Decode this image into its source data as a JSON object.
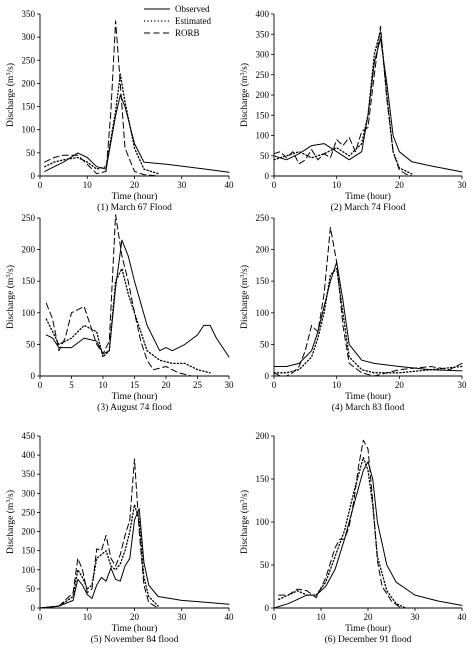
{
  "legend": {
    "entries": [
      {
        "name": "Observed",
        "style": "solid"
      },
      {
        "name": "Estimated",
        "style": "dotted"
      },
      {
        "name": "RORB",
        "style": "dashed"
      }
    ]
  },
  "chart_data": [
    {
      "type": "line",
      "caption": "(1) March 67 Flood",
      "xlabel": "Time (hour)",
      "ylabel": "Discharge (m3/s)",
      "xlim": [
        0,
        40
      ],
      "ylim": [
        0,
        350
      ],
      "xticks": [
        0,
        10,
        20,
        30,
        40
      ],
      "yticks": [
        0,
        50,
        100,
        150,
        200,
        250,
        300,
        350
      ],
      "legend_position": "top-right",
      "series": [
        {
          "name": "Observed",
          "style": "solid",
          "x": [
            1,
            3,
            5,
            8,
            10,
            12,
            14,
            16,
            17,
            18,
            20,
            22,
            27,
            31,
            35,
            40
          ],
          "y": [
            10,
            20,
            30,
            50,
            40,
            20,
            15,
            130,
            175,
            150,
            70,
            30,
            25,
            20,
            15,
            8
          ]
        },
        {
          "name": "Estimated",
          "style": "dotted",
          "x": [
            1,
            3,
            5,
            8,
            10,
            12,
            14,
            16,
            17,
            18,
            20,
            22,
            25
          ],
          "y": [
            20,
            30,
            35,
            40,
            30,
            15,
            20,
            140,
            220,
            160,
            60,
            15,
            5
          ]
        },
        {
          "name": "RORB",
          "style": "dashed",
          "x": [
            1,
            3,
            5,
            8,
            10,
            12,
            14,
            15,
            16,
            17,
            18,
            20,
            22,
            25
          ],
          "y": [
            30,
            40,
            45,
            45,
            25,
            5,
            10,
            140,
            335,
            200,
            60,
            10,
            3,
            0
          ]
        }
      ]
    },
    {
      "type": "line",
      "caption": "(2) March 74 Flood",
      "xlabel": "Time (hour)",
      "ylabel": "Discharge (m3/s)",
      "xlim": [
        0,
        30
      ],
      "ylim": [
        0,
        400
      ],
      "xticks": [
        0,
        10,
        20,
        30
      ],
      "yticks": [
        0,
        50,
        100,
        150,
        200,
        250,
        300,
        350,
        400
      ],
      "series": [
        {
          "name": "Observed",
          "style": "solid",
          "x": [
            0,
            2,
            4,
            6,
            8,
            10,
            12,
            14,
            15,
            16,
            17,
            18,
            19,
            20,
            22,
            25,
            30
          ],
          "y": [
            50,
            40,
            55,
            75,
            80,
            60,
            40,
            60,
            150,
            280,
            340,
            230,
            100,
            60,
            35,
            25,
            10
          ]
        },
        {
          "name": "Estimated",
          "style": "dotted",
          "x": [
            0,
            2,
            4,
            6,
            8,
            10,
            12,
            14,
            15,
            16,
            17,
            18,
            19,
            20,
            22
          ],
          "y": [
            40,
            50,
            60,
            45,
            55,
            70,
            50,
            80,
            150,
            300,
            360,
            200,
            60,
            20,
            5
          ]
        },
        {
          "name": "RORB",
          "style": "dashed",
          "x": [
            0,
            1,
            2,
            3,
            4,
            5,
            6,
            7,
            8,
            9,
            10,
            11,
            12,
            13,
            14,
            15,
            16,
            17,
            18,
            19,
            20,
            21,
            22
          ],
          "y": [
            55,
            60,
            45,
            60,
            30,
            40,
            65,
            40,
            55,
            45,
            90,
            75,
            95,
            60,
            110,
            120,
            250,
            370,
            190,
            60,
            15,
            5,
            0
          ]
        }
      ]
    },
    {
      "type": "line",
      "caption": "(3) August 74 flood",
      "xlabel": "Time (hour)",
      "ylabel": "Discharge (m3/s)",
      "xlim": [
        0,
        30
      ],
      "ylim": [
        0,
        250
      ],
      "xticks": [
        0,
        5,
        10,
        15,
        20,
        25,
        30
      ],
      "yticks": [
        0,
        50,
        100,
        150,
        200,
        250
      ],
      "series": [
        {
          "name": "Observed",
          "style": "solid",
          "x": [
            1,
            2,
            3,
            5,
            7,
            9,
            10,
            11,
            12,
            13,
            14,
            15,
            17,
            19,
            20,
            21,
            23,
            25,
            26,
            27,
            28,
            30
          ],
          "y": [
            65,
            60,
            45,
            45,
            60,
            55,
            35,
            40,
            140,
            215,
            190,
            150,
            80,
            40,
            45,
            40,
            50,
            65,
            80,
            80,
            60,
            30
          ]
        },
        {
          "name": "Estimated",
          "style": "dotted",
          "x": [
            1,
            2,
            3,
            5,
            7,
            9,
            10,
            11,
            12,
            13,
            14,
            15,
            17,
            19,
            21,
            23,
            25,
            27
          ],
          "y": [
            90,
            70,
            50,
            60,
            80,
            70,
            30,
            40,
            150,
            170,
            130,
            100,
            40,
            25,
            20,
            20,
            10,
            5
          ]
        },
        {
          "name": "RORB",
          "style": "dashed",
          "x": [
            1,
            2,
            3,
            4,
            5,
            7,
            8,
            9,
            10,
            11,
            12,
            13,
            14,
            15,
            16,
            17,
            18,
            20,
            22,
            24
          ],
          "y": [
            115,
            90,
            40,
            60,
            100,
            110,
            80,
            50,
            35,
            55,
            255,
            190,
            150,
            100,
            55,
            25,
            10,
            15,
            5,
            0
          ]
        }
      ]
    },
    {
      "type": "line",
      "caption": "(4) March 83 flood",
      "xlabel": "Time (hour)",
      "ylabel": "Discharge (m3/s)",
      "xlim": [
        0,
        30
      ],
      "ylim": [
        0,
        250
      ],
      "xticks": [
        0,
        10,
        20,
        30
      ],
      "yticks": [
        0,
        50,
        100,
        150,
        200,
        250
      ],
      "series": [
        {
          "name": "Observed",
          "style": "solid",
          "x": [
            0,
            2,
            4,
            6,
            7,
            8,
            9,
            10,
            11,
            12,
            14,
            16,
            20,
            25,
            30
          ],
          "y": [
            15,
            15,
            20,
            40,
            70,
            110,
            150,
            180,
            120,
            50,
            25,
            20,
            15,
            10,
            8
          ]
        },
        {
          "name": "Estimated",
          "style": "dotted",
          "x": [
            0,
            2,
            4,
            6,
            7,
            8,
            9,
            10,
            11,
            12,
            14,
            16,
            20,
            25,
            30
          ],
          "y": [
            5,
            5,
            10,
            30,
            60,
            100,
            160,
            170,
            100,
            30,
            10,
            5,
            5,
            10,
            15
          ]
        },
        {
          "name": "RORB",
          "style": "dashed",
          "x": [
            0,
            1,
            2,
            3,
            4,
            5,
            6,
            7,
            8,
            9,
            10,
            11,
            12,
            14,
            16,
            18,
            20,
            25,
            28,
            30
          ],
          "y": [
            5,
            0,
            0,
            5,
            15,
            40,
            80,
            70,
            130,
            235,
            180,
            80,
            20,
            5,
            0,
            5,
            10,
            15,
            10,
            20
          ]
        }
      ]
    },
    {
      "type": "line",
      "caption": "(5) November 84 flood",
      "xlabel": "Time (hour)",
      "ylabel": "Discharge (m3/s)",
      "xlim": [
        0,
        40
      ],
      "ylim": [
        0,
        450
      ],
      "xticks": [
        0,
        10,
        20,
        30,
        40
      ],
      "yticks": [
        0,
        50,
        100,
        150,
        200,
        250,
        300,
        350,
        400,
        450
      ],
      "series": [
        {
          "name": "Observed",
          "style": "solid",
          "x": [
            0,
            4,
            7,
            8,
            9,
            10,
            11,
            12,
            13,
            14,
            15,
            16,
            17,
            18,
            19,
            20,
            21,
            22,
            23,
            25,
            30,
            35,
            40
          ],
          "y": [
            0,
            5,
            20,
            75,
            60,
            35,
            25,
            60,
            80,
            70,
            105,
            75,
            70,
            110,
            130,
            230,
            260,
            120,
            60,
            30,
            20,
            15,
            10
          ]
        },
        {
          "name": "Estimated",
          "style": "dotted",
          "x": [
            0,
            4,
            7,
            8,
            9,
            10,
            11,
            12,
            13,
            14,
            15,
            16,
            17,
            18,
            19,
            20,
            21,
            22,
            23,
            25
          ],
          "y": [
            0,
            5,
            30,
            100,
            80,
            50,
            60,
            130,
            140,
            150,
            110,
            100,
            115,
            150,
            200,
            270,
            230,
            80,
            30,
            5
          ]
        },
        {
          "name": "RORB",
          "style": "dashed",
          "x": [
            0,
            4,
            7,
            8,
            9,
            10,
            11,
            12,
            13,
            14,
            15,
            16,
            17,
            18,
            19,
            20,
            21,
            22,
            23,
            25
          ],
          "y": [
            0,
            5,
            40,
            130,
            100,
            40,
            50,
            155,
            150,
            190,
            130,
            110,
            140,
            190,
            230,
            390,
            200,
            60,
            15,
            0
          ]
        }
      ]
    },
    {
      "type": "line",
      "caption": "(6) December 91 flood",
      "xlabel": "Time (hour)",
      "ylabel": "Discharge (m3/s)",
      "xlim": [
        0,
        40
      ],
      "ylim": [
        0,
        200
      ],
      "xticks": [
        0,
        10,
        20,
        30,
        40
      ],
      "yticks": [
        0,
        50,
        100,
        150,
        200
      ],
      "series": [
        {
          "name": "Observed",
          "style": "solid",
          "x": [
            0,
            3,
            5,
            7,
            9,
            11,
            13,
            15,
            17,
            19,
            20,
            21,
            22,
            24,
            26,
            30,
            35,
            40
          ],
          "y": [
            0,
            5,
            10,
            15,
            15,
            25,
            45,
            80,
            120,
            160,
            170,
            150,
            100,
            50,
            30,
            15,
            8,
            3
          ]
        },
        {
          "name": "Estimated",
          "style": "dotted",
          "x": [
            1,
            3,
            5,
            7,
            9,
            11,
            13,
            15,
            17,
            19,
            20,
            21,
            22,
            24,
            26,
            28
          ],
          "y": [
            10,
            15,
            20,
            15,
            15,
            30,
            60,
            90,
            135,
            175,
            160,
            120,
            60,
            20,
            5,
            0
          ]
        },
        {
          "name": "RORB",
          "style": "dashed",
          "x": [
            1,
            3,
            5,
            7,
            9,
            11,
            13,
            14,
            15,
            16,
            17,
            18,
            19,
            20,
            21,
            22,
            23,
            25,
            27
          ],
          "y": [
            15,
            15,
            22,
            20,
            12,
            35,
            70,
            80,
            80,
            95,
            125,
            165,
            195,
            185,
            125,
            55,
            25,
            8,
            0
          ]
        }
      ]
    }
  ]
}
